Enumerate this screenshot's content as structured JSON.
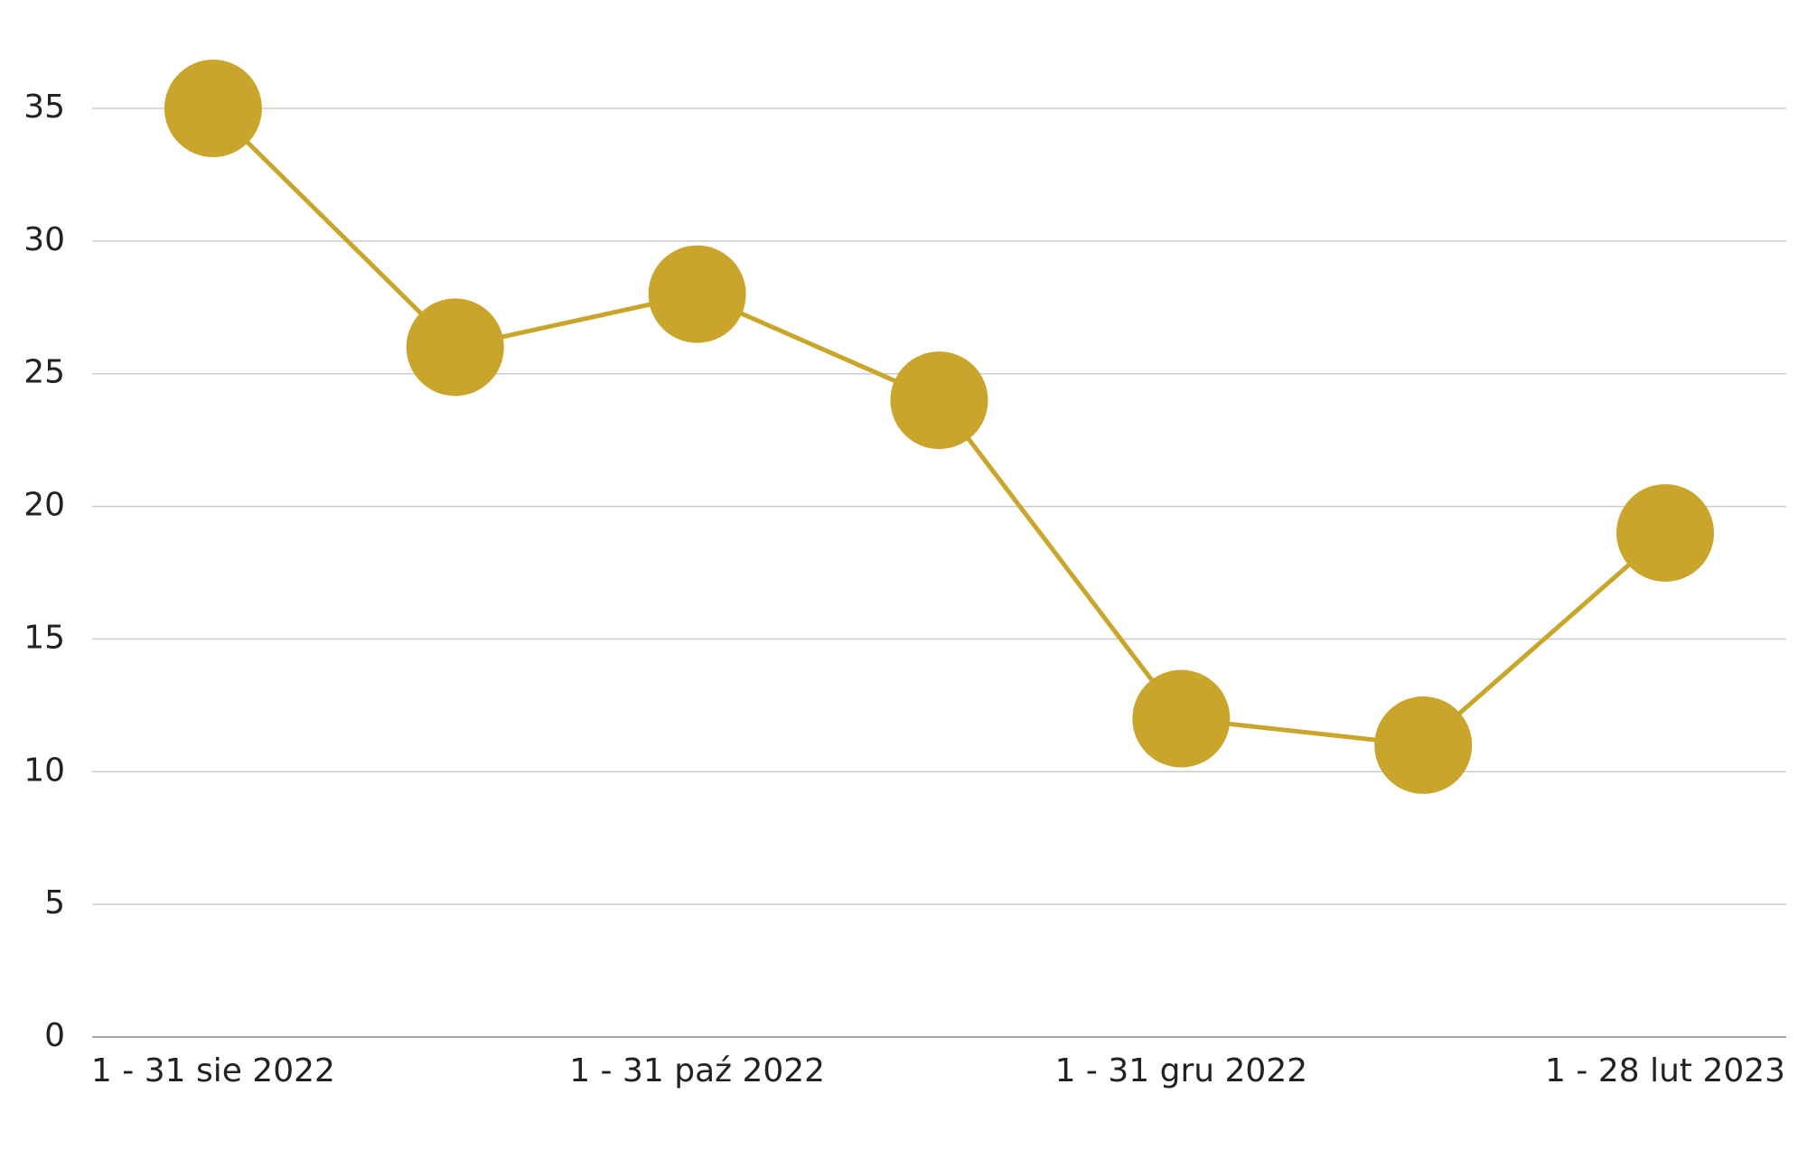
{
  "chart_data": {
    "type": "line",
    "categories": [
      "1 - 31 sie 2022",
      null,
      "1 - 31 paź 2022",
      null,
      "1 - 31 gru 2022",
      null,
      "1 - 28 lut 2023"
    ],
    "series": [
      {
        "color": "#c9a52b",
        "values": [
          35,
          26,
          28,
          24,
          12,
          11,
          19
        ]
      }
    ],
    "ylim": [
      0,
      35
    ],
    "yticks": [
      0,
      5,
      10,
      15,
      20,
      25,
      30,
      35
    ],
    "grid": true
  }
}
